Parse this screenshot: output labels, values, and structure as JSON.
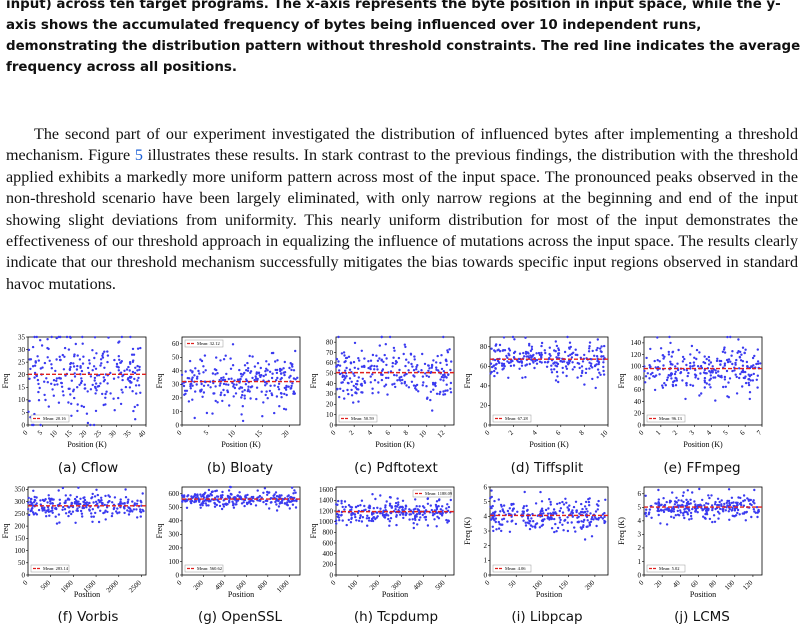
{
  "caption": "input) across ten target programs. The x-axis represents the byte position in input space, while the y-axis shows the accumulated frequency of bytes being influenced over 10 independent runs, demonstrating the distribution pattern without threshold constraints. The red line indicates the average frequency across all positions.",
  "paragraph": {
    "before_ref": "The second part of our experiment investigated the distribution of influenced bytes after implementing a threshold mechanism. Figure ",
    "ref": "5",
    "after_ref": " illustrates these results. In stark contrast to the previous findings, the distribution with the threshold applied exhibits a markedly more uniform pattern across most of the input space. The pronounced peaks observed in the non-threshold scenario have been largely eliminated, with only narrow regions at the beginning and end of the input showing slight deviations from uniformity. This nearly uniform distribution for most of the input demonstrates the effectiveness of our threshold approach in equalizing the influence of mutations across the input space. The results clearly indicate that our threshold mechanism successfully mitigates the bias towards specific input regions observed in standard havoc mutations."
  },
  "bottom_text": "... for ... of ... ... threshold ...",
  "colors": {
    "points": "#3a3af0",
    "mean_line": "#e0201e"
  },
  "chart_data": [
    {
      "type": "scatter",
      "subcaption": "(a) Cflow",
      "xlabel": "Position (K)",
      "ylabel": "Freq",
      "xlim": [
        0,
        40
      ],
      "ylim": [
        0,
        35
      ],
      "xticks": [
        0,
        5,
        10,
        15,
        20,
        25,
        30,
        35,
        40
      ],
      "yticks": [
        0,
        5,
        10,
        15,
        20,
        25,
        30,
        35
      ],
      "mean_label": "Mean: 20.16",
      "mean": 20.16,
      "legend": "lower-left",
      "spread": 7,
      "xmax_data": 38.5
    },
    {
      "type": "scatter",
      "subcaption": "(b) Bloaty",
      "xlabel": "Position (K)",
      "ylabel": "Freq",
      "xlim": [
        0,
        22
      ],
      "ylim": [
        0,
        65
      ],
      "xticks": [
        0,
        5,
        10,
        15,
        20
      ],
      "yticks": [
        0,
        10,
        20,
        30,
        40,
        50,
        60
      ],
      "mean_label": "Mean: 32.12",
      "mean": 32.12,
      "legend": "top-left",
      "spread": 9,
      "xmax_data": 21.5
    },
    {
      "type": "scatter",
      "subcaption": "(c) Pdftotext",
      "xlabel": "Position (K)",
      "ylabel": "Freq",
      "xlim": [
        0,
        13
      ],
      "ylim": [
        0,
        85
      ],
      "xticks": [
        0,
        2,
        4,
        6,
        8,
        10,
        12
      ],
      "yticks": [
        0,
        10,
        20,
        30,
        40,
        50,
        60,
        70,
        80
      ],
      "mean_label": "Mean: 50.59",
      "mean": 50.59,
      "legend": "lower-left",
      "spread": 12,
      "xmax_data": 12.7
    },
    {
      "type": "scatter",
      "subcaption": "(d) Tiffsplit",
      "xlabel": "Position (K)",
      "ylabel": "Freq",
      "xlim": [
        0,
        10
      ],
      "ylim": [
        0,
        90
      ],
      "xticks": [
        0,
        2,
        4,
        6,
        8,
        10
      ],
      "yticks": [
        0,
        20,
        40,
        60,
        80
      ],
      "mean_label": "Mean: 67.28",
      "mean": 67.28,
      "legend": "lower-left",
      "spread": 9,
      "xmax_data": 9.8
    },
    {
      "type": "scatter",
      "subcaption": "(e) FFmpeg",
      "xlabel": "Position (K)",
      "ylabel": "Freq",
      "xlim": [
        0,
        7
      ],
      "ylim": [
        0,
        150
      ],
      "xticks": [
        0,
        1,
        2,
        3,
        4,
        5,
        6,
        7
      ],
      "yticks": [
        0,
        20,
        40,
        60,
        80,
        100,
        120,
        140
      ],
      "mean_label": "Mean: 96.13",
      "mean": 96.13,
      "legend": "lower-left",
      "spread": 18,
      "xmax_data": 6.9
    },
    {
      "type": "scatter",
      "subcaption": "(f) Vorbis",
      "xlabel": "Position",
      "ylabel": "Freq",
      "xlim": [
        0,
        2600
      ],
      "ylim": [
        0,
        360
      ],
      "xticks": [
        0,
        500,
        1000,
        1500,
        2000,
        2500
      ],
      "yticks": [
        0,
        50,
        100,
        150,
        200,
        250,
        300,
        350
      ],
      "mean_label": "Mean: 283.14",
      "mean": 283.14,
      "legend": "lower-left",
      "spread": 22,
      "xmax_data": 2550
    },
    {
      "type": "scatter",
      "subcaption": "(g) OpenSSL",
      "xlabel": "Position",
      "ylabel": "Freq",
      "xlim": [
        0,
        1100
      ],
      "ylim": [
        0,
        650
      ],
      "xticks": [
        0,
        200,
        400,
        600,
        800,
        1000
      ],
      "yticks": [
        0,
        100,
        200,
        300,
        400,
        500,
        600
      ],
      "mean_label": "Mean: 560.62",
      "mean": 560.62,
      "legend": "lower-left",
      "spread": 28,
      "xmax_data": 1070
    },
    {
      "type": "scatter",
      "subcaption": "(h) Tcpdump",
      "xlabel": "Position",
      "ylabel": "Freq",
      "xlim": [
        0,
        540
      ],
      "ylim": [
        0,
        1650
      ],
      "xticks": [
        0,
        100,
        200,
        300,
        400,
        500
      ],
      "yticks": [
        0,
        200,
        400,
        600,
        800,
        1000,
        1200,
        1400,
        1600
      ],
      "mean_label": "Mean: 1188.09",
      "mean": 1188.09,
      "legend": "top-right",
      "spread": 110,
      "xmax_data": 530
    },
    {
      "type": "scatter",
      "subcaption": "(i) Libpcap",
      "xlabel": "Position",
      "ylabel": "Freq (K)",
      "xlim": [
        0,
        225
      ],
      "ylim": [
        0,
        6
      ],
      "xticks": [
        0,
        50,
        100,
        150,
        200
      ],
      "yticks": [
        0,
        1,
        2,
        3,
        4,
        5,
        6
      ],
      "mean_label": "Mean: 4.06",
      "mean": 4.06,
      "legend": "lower-left",
      "spread": 0.5,
      "xmax_data": 220
    },
    {
      "type": "scatter",
      "subcaption": "(j) LCMS",
      "xlabel": "Position",
      "ylabel": "Freq (K)",
      "xlim": [
        0,
        130
      ],
      "ylim": [
        0,
        6.5
      ],
      "xticks": [
        0,
        20,
        40,
        60,
        80,
        100,
        120
      ],
      "yticks": [
        0,
        1,
        2,
        3,
        4,
        5,
        6
      ],
      "mean_label": "Mean: 5.02",
      "mean": 5.02,
      "legend": "lower-left",
      "spread": 0.4,
      "xmax_data": 127
    }
  ]
}
